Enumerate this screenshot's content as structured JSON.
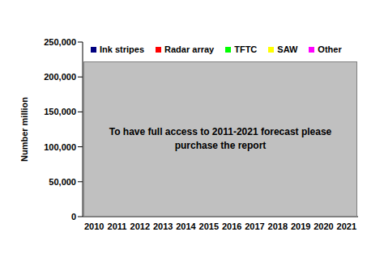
{
  "chart_data": {
    "type": "bar",
    "y_label": "Number million",
    "annotation": "To have full access to 2011-2021 forecast please purchase the report",
    "categories": [
      "2010",
      "2011",
      "2012",
      "2013",
      "2014",
      "2015",
      "2016",
      "2017",
      "2018",
      "2019",
      "2020",
      "2021"
    ],
    "series": [
      {
        "name": "Ink stripes",
        "color": "#000080",
        "values": [
          null,
          null,
          null,
          null,
          null,
          null,
          null,
          null,
          null,
          null,
          null,
          null
        ]
      },
      {
        "name": "Radar array",
        "color": "#ff0000",
        "values": [
          null,
          null,
          null,
          null,
          null,
          null,
          null,
          null,
          null,
          null,
          null,
          null
        ]
      },
      {
        "name": "TFTC",
        "color": "#00ff00",
        "values": [
          null,
          null,
          null,
          null,
          null,
          null,
          null,
          null,
          null,
          null,
          null,
          null
        ]
      },
      {
        "name": "SAW",
        "color": "#ffff00",
        "values": [
          null,
          null,
          null,
          null,
          null,
          null,
          null,
          null,
          null,
          null,
          null,
          null
        ]
      },
      {
        "name": "Other",
        "color": "#ff00ff",
        "values": [
          null,
          null,
          null,
          null,
          null,
          null,
          null,
          null,
          null,
          null,
          null,
          null
        ]
      }
    ],
    "ylim": [
      0,
      250000
    ],
    "yticks": [
      0,
      {
        "value": 50000,
        "label": "50,000"
      },
      {
        "value": 100000,
        "label": "100,000"
      },
      {
        "value": 150000,
        "label": "150,000"
      },
      {
        "value": 200000,
        "label": "200,000"
      },
      {
        "value": 250000,
        "label": "250,000"
      }
    ],
    "legend": "top"
  }
}
